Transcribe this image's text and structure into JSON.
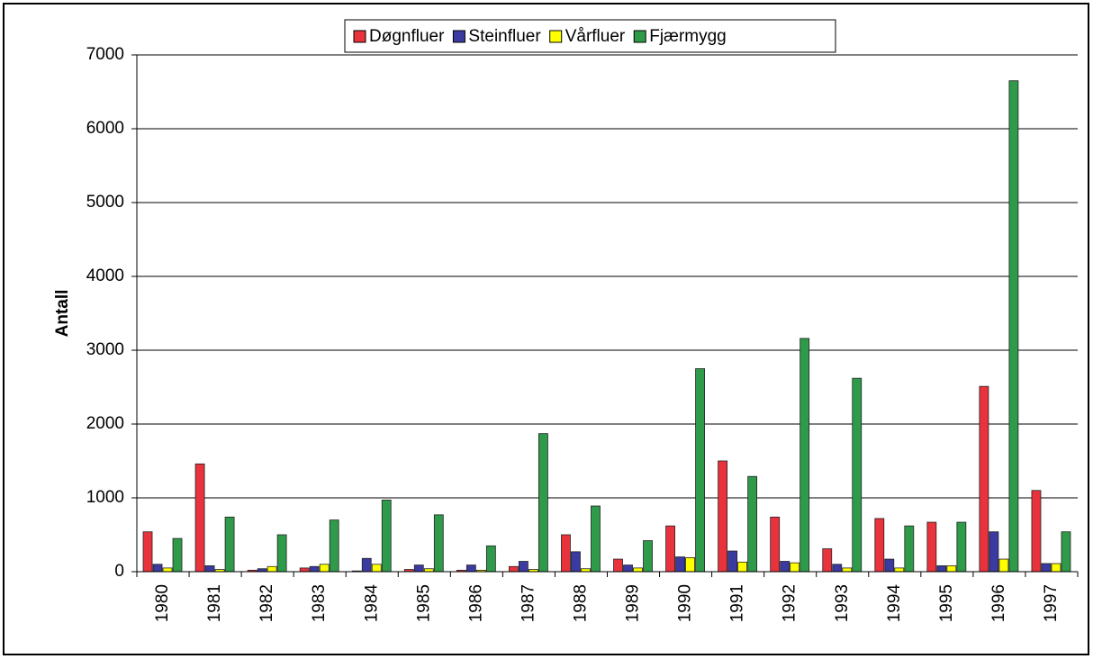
{
  "chart_data": {
    "type": "bar",
    "y_label": "Antall",
    "categories": [
      "1980",
      "1981",
      "1982",
      "1983",
      "1984",
      "1985",
      "1986",
      "1987",
      "1988",
      "1989",
      "1990",
      "1991",
      "1992",
      "1993",
      "1994",
      "1995",
      "1996",
      "1997"
    ],
    "series": [
      {
        "name": "Døgnfluer",
        "color": "#e8323c",
        "values": [
          540,
          1460,
          20,
          50,
          10,
          30,
          20,
          70,
          500,
          170,
          620,
          1500,
          740,
          310,
          720,
          670,
          2510,
          1100
        ]
      },
      {
        "name": "Steinfluer",
        "color": "#3a3aa0",
        "values": [
          100,
          80,
          40,
          70,
          180,
          90,
          90,
          140,
          270,
          90,
          200,
          280,
          140,
          100,
          170,
          80,
          540,
          110
        ]
      },
      {
        "name": "Vårfluer",
        "color": "#ffff00",
        "values": [
          50,
          30,
          70,
          100,
          100,
          40,
          20,
          30,
          40,
          50,
          190,
          130,
          120,
          50,
          50,
          80,
          170,
          110
        ]
      },
      {
        "name": "Fjærmygg",
        "color": "#2e9a4a",
        "values": [
          450,
          740,
          500,
          700,
          970,
          770,
          350,
          1870,
          890,
          420,
          2750,
          1290,
          3160,
          2620,
          620,
          670,
          6650,
          540
        ]
      }
    ],
    "ylim": [
      0,
      7000
    ],
    "yticks": [
      0,
      1000,
      2000,
      3000,
      4000,
      5000,
      6000,
      7000
    ],
    "grid": true,
    "legend": "top"
  }
}
